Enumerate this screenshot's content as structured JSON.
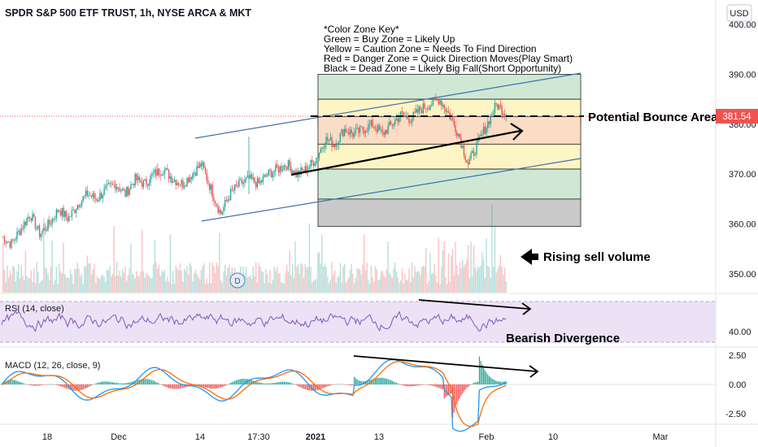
{
  "header": {
    "title": "SPDR S&P 500 ETF TRUST, 1h, NYSE ARCA & MKT",
    "currency_button": "USD"
  },
  "key": {
    "lines": [
      "*Color Zone Key*",
      "Green = Buy Zone = Likely Up",
      "Yellow = Caution Zone = Needs To Find Direction",
      "Red = Danger Zone = Quick Direction Moves(Play Smart)",
      "Black = Dead Zone = Likely Big Fall(Short Opportunity)"
    ]
  },
  "annotations": {
    "bounce": "Potential Bounce Area",
    "sell_volume": "Rising sell volume",
    "bearish": "Bearish Divergence",
    "dividend_marker": "D"
  },
  "price_label": "381.54",
  "indicators": {
    "rsi_label": "RSI (14, close)",
    "macd_label": "MACD (12, 26, close, 9)"
  },
  "chart_data": {
    "type": "line",
    "price_axis": {
      "ticks": [
        "400.00",
        "390.00",
        "380.00",
        "370.00",
        "360.00",
        "350.00"
      ],
      "values": [
        400,
        390,
        380,
        370,
        360,
        350
      ],
      "range": [
        345,
        403
      ]
    },
    "rsi_axis": {
      "ticks": [
        "40.00"
      ],
      "values": [
        40
      ]
    },
    "macd_axis": {
      "ticks": [
        "2.50",
        "0.00",
        "-2.50"
      ],
      "values": [
        2.5,
        0,
        -2.5
      ]
    },
    "time_axis": {
      "ticks": [
        "18",
        "Dec",
        "14",
        "17:30",
        "2021",
        "13",
        "Feb",
        "10",
        "Mar"
      ]
    },
    "last_price": 381.54,
    "zones": [
      {
        "name": "Green",
        "from": 385,
        "to": 390,
        "color": "#cfe8d4"
      },
      {
        "name": "Yellow",
        "from": 380,
        "to": 385,
        "color": "#fdf5c4"
      },
      {
        "name": "Red",
        "from": 376,
        "to": 381.5,
        "color": "#fbdcc4"
      },
      {
        "name": "Yellow",
        "from": 371,
        "to": 376,
        "color": "#fdf5c4"
      },
      {
        "name": "Green",
        "from": 365,
        "to": 371,
        "color": "#cfe8d4"
      },
      {
        "name": "Black",
        "from": 359.5,
        "to": 365,
        "color": "#c9c9c9"
      }
    ],
    "price_series": [
      357.5,
      356,
      359,
      362,
      358,
      360,
      363,
      361,
      364,
      366,
      365,
      367,
      368,
      366,
      369,
      368,
      370,
      371,
      369,
      368,
      370,
      372,
      367,
      362,
      366,
      368,
      369,
      368,
      370,
      371,
      372,
      370,
      371,
      373,
      377,
      376,
      379,
      378,
      379,
      380,
      378,
      380,
      382,
      381,
      383,
      384,
      385,
      382,
      378,
      372,
      376,
      380,
      384,
      382
    ],
    "colors": {
      "up": "#26a69a",
      "down": "#ef5350",
      "rsi": "#7e57c2",
      "macd": "#2196f3",
      "signal": "#ff6d00",
      "channel": "#2962ff"
    }
  }
}
